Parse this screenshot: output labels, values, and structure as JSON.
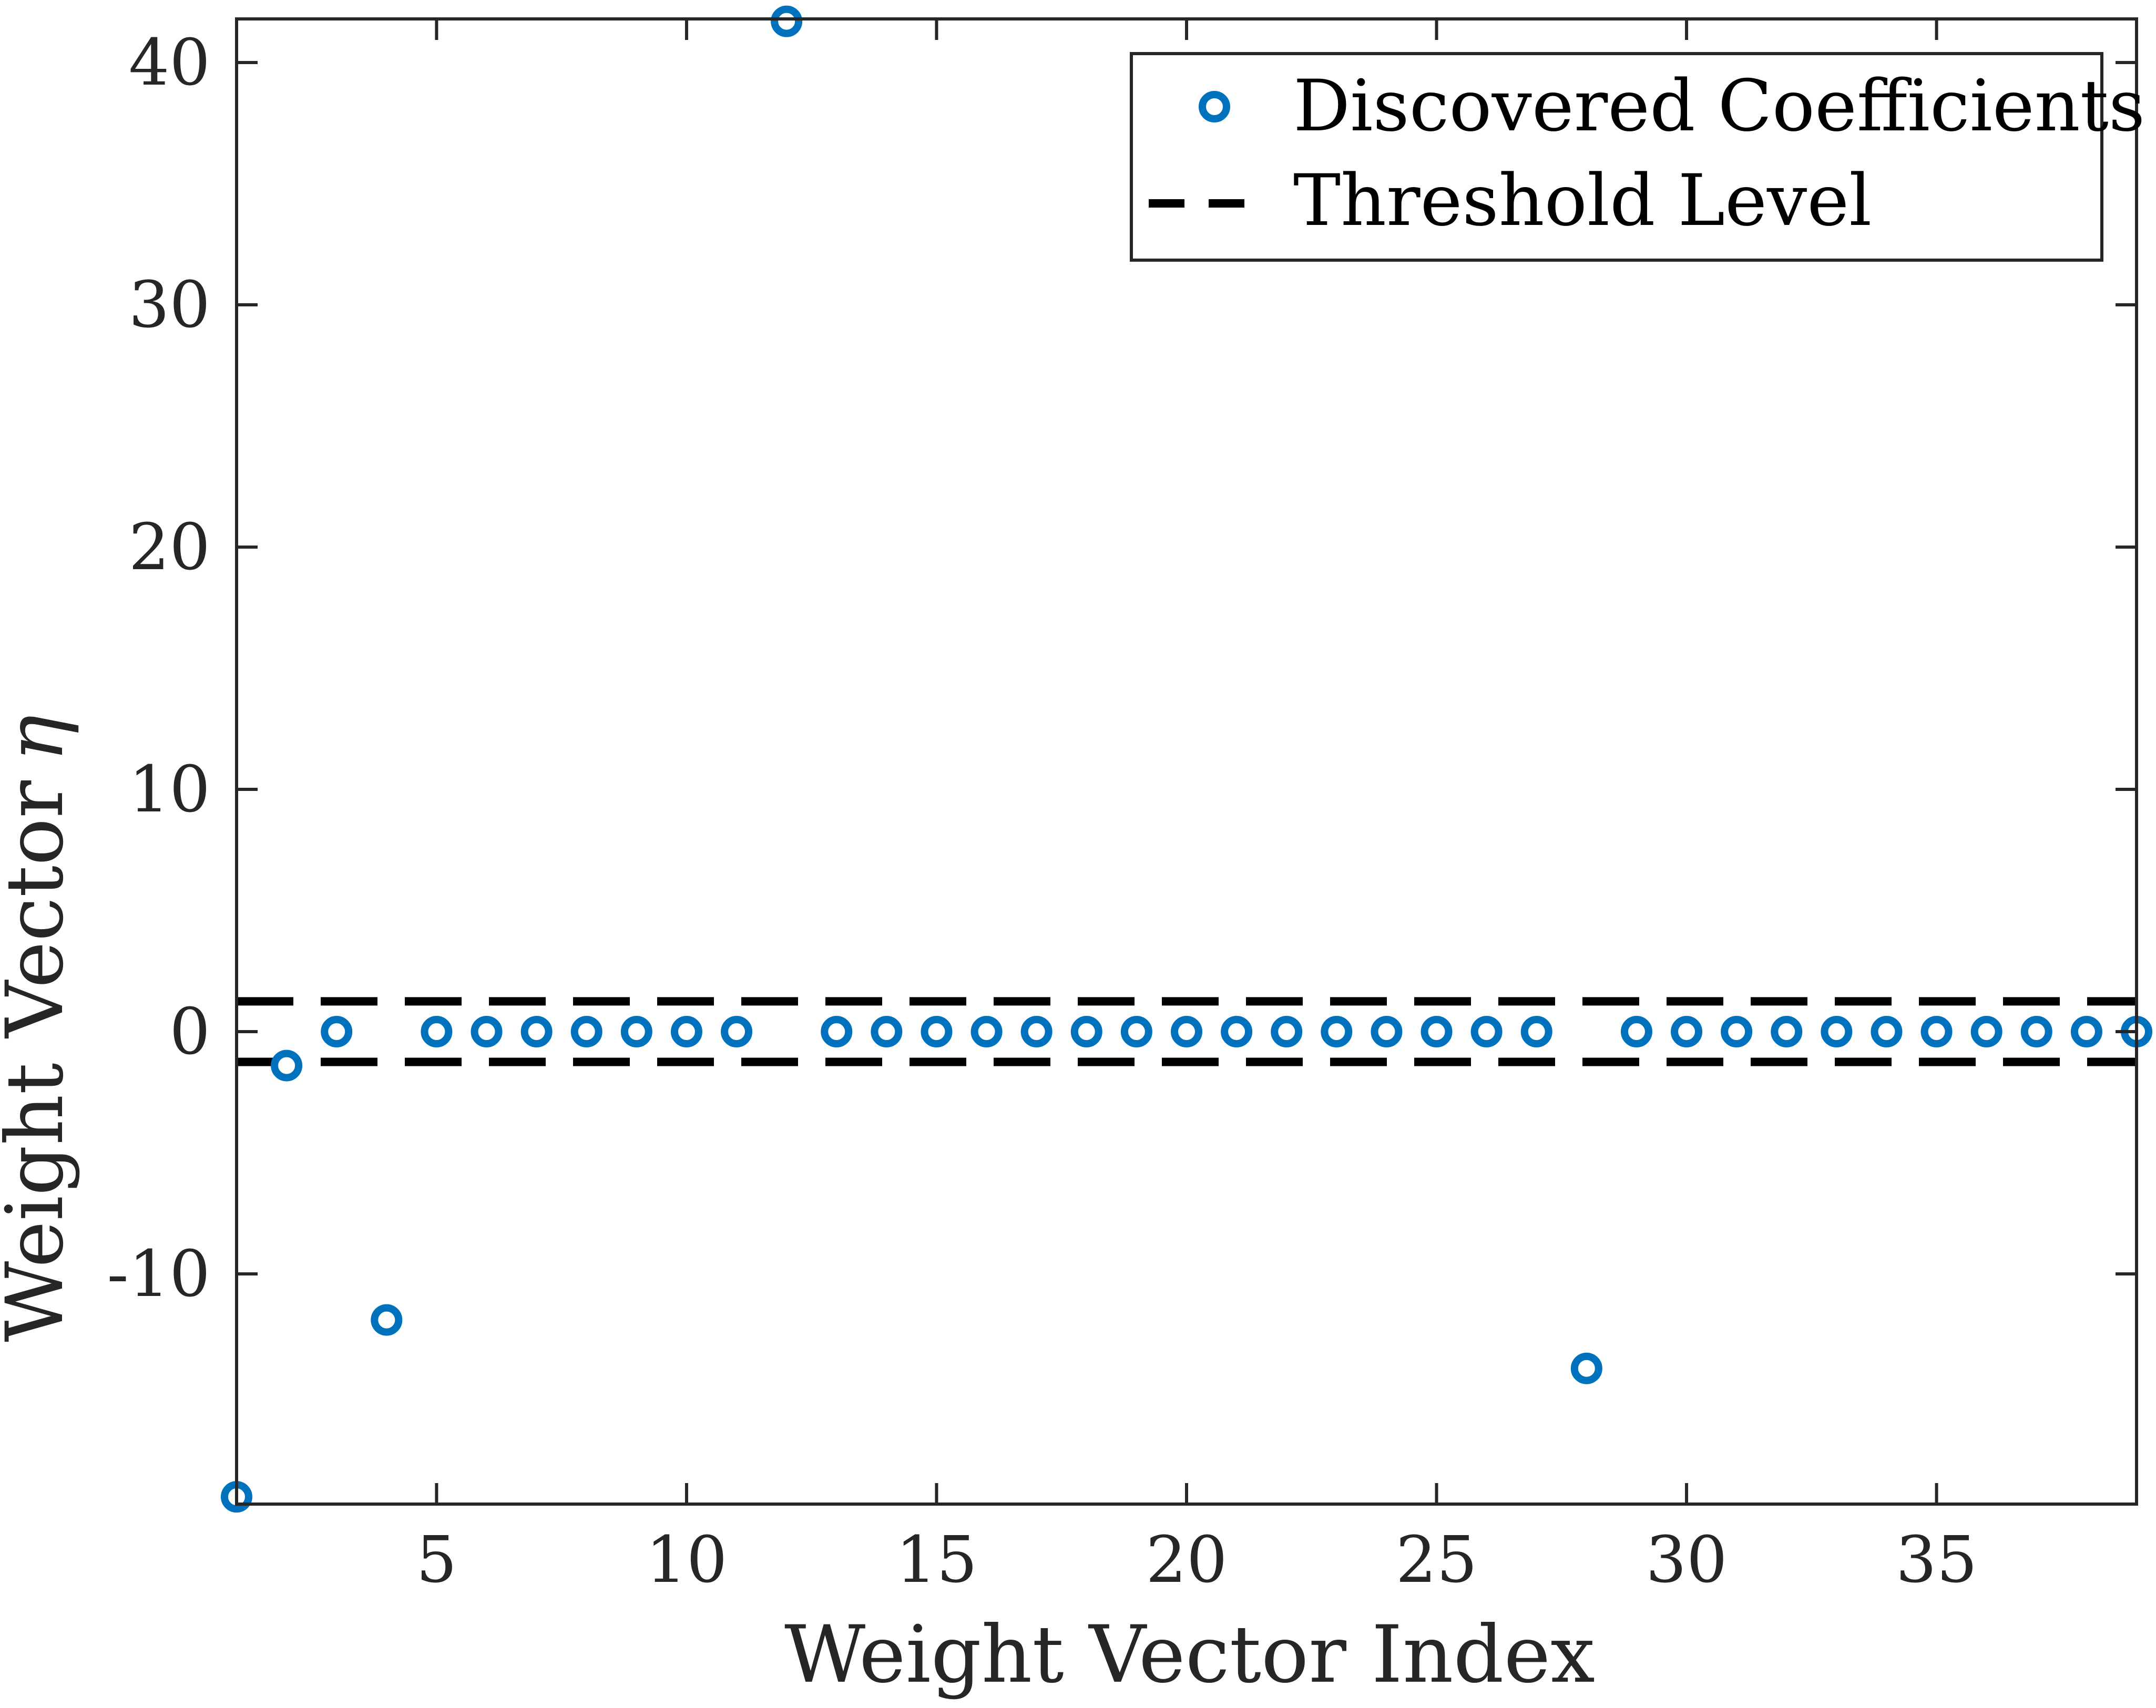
{
  "chart_data": {
    "type": "scatter",
    "xlabel": "Weight Vector Index",
    "ylabel": "Weight Vector",
    "ylabel_symbol": "η",
    "xlim": [
      1,
      39
    ],
    "ylim": [
      -19.5,
      41.8
    ],
    "xticks": [
      5,
      10,
      15,
      20,
      25,
      30,
      35
    ],
    "yticks": [
      -10,
      0,
      10,
      20,
      30,
      40
    ],
    "grid": false,
    "legend_position": "top-right",
    "series": [
      {
        "name": "Discovered Coefficients",
        "kind": "markers",
        "color": "#0072BD",
        "x": [
          1,
          2,
          3,
          4,
          5,
          6,
          7,
          8,
          9,
          10,
          11,
          12,
          13,
          14,
          15,
          16,
          17,
          18,
          19,
          20,
          21,
          22,
          23,
          24,
          25,
          26,
          27,
          28,
          29,
          30,
          31,
          32,
          33,
          34,
          35,
          36,
          37,
          38,
          39
        ],
        "y": [
          -19.2,
          -1.4,
          0,
          -11.9,
          0,
          0,
          0,
          0,
          0,
          0,
          0,
          41.7,
          0,
          0,
          0,
          0,
          0,
          0,
          0,
          0,
          0,
          0,
          0,
          0,
          0,
          0,
          0,
          -13.9,
          0,
          0,
          0,
          0,
          0,
          0,
          0,
          0,
          0,
          0,
          0
        ]
      },
      {
        "name": "Threshold Level",
        "kind": "dashed-lines",
        "color": "#000000",
        "levels": [
          1.25,
          -1.25
        ]
      }
    ]
  }
}
